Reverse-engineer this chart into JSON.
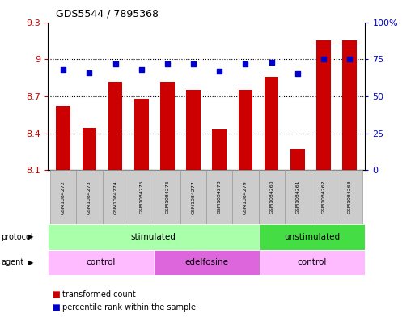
{
  "title": "GDS5544 / 7895368",
  "categories": [
    "GSM1084272",
    "GSM1084273",
    "GSM1084274",
    "GSM1084275",
    "GSM1084276",
    "GSM1084277",
    "GSM1084278",
    "GSM1084279",
    "GSM1084260",
    "GSM1084261",
    "GSM1084262",
    "GSM1084263"
  ],
  "bar_values": [
    8.62,
    8.44,
    8.82,
    8.68,
    8.82,
    8.75,
    8.43,
    8.75,
    8.86,
    8.27,
    9.15,
    9.15
  ],
  "percentile_values": [
    68,
    66,
    72,
    68,
    72,
    72,
    67,
    72,
    73,
    65,
    75,
    75
  ],
  "ylim_left": [
    8.1,
    9.3
  ],
  "ylim_right": [
    0,
    100
  ],
  "bar_color": "#cc0000",
  "dot_color": "#0000cc",
  "bar_bottom": 8.1,
  "yticks_left": [
    8.1,
    8.4,
    8.7,
    9.0,
    9.3
  ],
  "yticks_right": [
    0,
    25,
    50,
    75,
    100
  ],
  "ytick_labels_left": [
    "8.1",
    "8.4",
    "8.7",
    "9",
    "9.3"
  ],
  "ytick_labels_right": [
    "0",
    "25",
    "50",
    "75",
    "100%"
  ],
  "grid_lines": [
    8.4,
    8.7,
    9.0
  ],
  "protocol_groups": [
    {
      "label": "stimulated",
      "start": 0,
      "end": 7,
      "color": "#aaffaa"
    },
    {
      "label": "unstimulated",
      "start": 8,
      "end": 11,
      "color": "#44dd44"
    }
  ],
  "agent_groups": [
    {
      "label": "control",
      "start": 0,
      "end": 3,
      "color": "#ffbbff"
    },
    {
      "label": "edelfosine",
      "start": 4,
      "end": 7,
      "color": "#dd66dd"
    },
    {
      "label": "control",
      "start": 8,
      "end": 11,
      "color": "#ffbbff"
    }
  ],
  "legend_bar_label": "transformed count",
  "legend_dot_label": "percentile rank within the sample",
  "bg_color": "#ffffff",
  "tick_color_left": "#cc0000",
  "tick_color_right": "#0000cc",
  "sample_box_color": "#cccccc",
  "sample_box_edge": "#999999"
}
